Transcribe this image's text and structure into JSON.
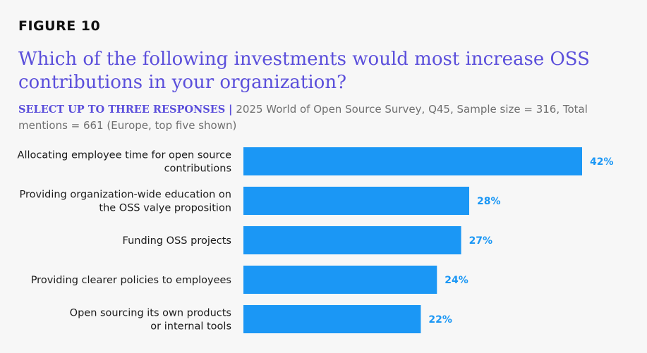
{
  "figure_label": "FIGURE 10",
  "title": "Which of the following investments would most increase OSS contributions in your organization?",
  "subtitle": {
    "lead": "SELECT UP TO THREE RESPONSES",
    "separator": "|",
    "text": "2025 World of Open Source Survey, Q45, Sample size = 316, Total mentions = 661 (Europe, top five shown)"
  },
  "colors": {
    "bar": "#1b97f5",
    "value_label": "#1b97f5",
    "title": "#5b4fdb",
    "background": "#f7f7f7"
  },
  "chart_data": {
    "type": "bar",
    "orientation": "horizontal",
    "title": "Which of the following investments would most increase OSS contributions in your organization?",
    "xlabel": "",
    "ylabel": "",
    "xlim": [
      0,
      42
    ],
    "grid": false,
    "legend": "none",
    "value_suffix": "%",
    "categories": [
      [
        "Allocating employee time for open source",
        "contributions"
      ],
      [
        "Providing organization-wide education on",
        "the OSS valye proposition"
      ],
      [
        "Funding OSS projects"
      ],
      [
        "Providing clearer policies to employees"
      ],
      [
        "Open sourcing its own products",
        "or internal tools"
      ]
    ],
    "values": [
      42,
      28,
      27,
      24,
      22
    ],
    "value_labels": [
      "42%",
      "28%",
      "27%",
      "24%",
      "22%"
    ]
  }
}
